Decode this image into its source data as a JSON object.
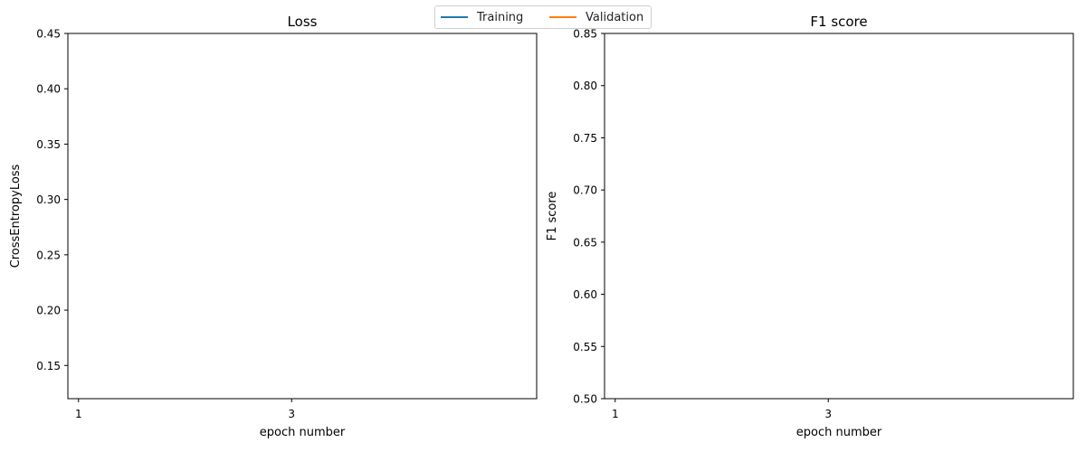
{
  "legend": {
    "items": [
      {
        "label": "Training",
        "color": "#1f77b4"
      },
      {
        "label": "Validation",
        "color": "#ff7f0e"
      }
    ]
  },
  "chart_data": [
    {
      "type": "line",
      "title": "Loss",
      "xlabel": "epoch number",
      "ylabel": "CrossEntropyLoss",
      "xlim": [
        0.9,
        5.3
      ],
      "ylim": [
        0.12,
        0.45
      ],
      "xticks": [
        1,
        3
      ],
      "yticks": [
        0.15,
        0.2,
        0.25,
        0.3,
        0.35,
        0.4,
        0.45
      ],
      "yticklabels": [
        "0.15",
        "0.20",
        "0.25",
        "0.30",
        "0.35",
        "0.40",
        "0.45"
      ],
      "series": [
        {
          "name": "Training",
          "color": "#1f77b4",
          "x": [],
          "y": []
        },
        {
          "name": "Validation",
          "color": "#ff7f0e",
          "x": [],
          "y": []
        }
      ],
      "grid": false
    },
    {
      "type": "line",
      "title": "F1 score",
      "xlabel": "epoch number",
      "ylabel": "F1 score",
      "xlim": [
        0.9,
        5.3
      ],
      "ylim": [
        0.5,
        0.85
      ],
      "xticks": [
        1,
        3
      ],
      "yticks": [
        0.5,
        0.55,
        0.6,
        0.65,
        0.7,
        0.75,
        0.8,
        0.85
      ],
      "yticklabels": [
        "0.50",
        "0.55",
        "0.60",
        "0.65",
        "0.70",
        "0.75",
        "0.80",
        "0.85"
      ],
      "series": [
        {
          "name": "Training",
          "color": "#1f77b4",
          "x": [],
          "y": []
        },
        {
          "name": "Validation",
          "color": "#ff7f0e",
          "x": [],
          "y": []
        }
      ],
      "grid": false
    }
  ]
}
